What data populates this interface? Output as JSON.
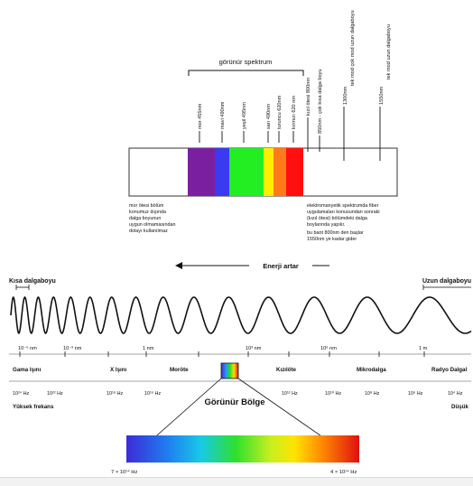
{
  "top": {
    "title": "görünür spektrum",
    "tick_labels": [
      "mor 455nm",
      "mavi 490nm",
      "yeşil 495nm",
      "sarı 490nm",
      "turuncu 620nm",
      "kırmızı 620 nm",
      "kızıl ötesi 800nm",
      "850nm - çok kısa dalga boyu",
      "1300nm",
      "tek mod çok mod uzun dalgaboyu",
      "1550nm",
      "tek mod uzun dalgaboyu"
    ],
    "note_left": [
      "mor ötesi bölüm",
      "konumuz dışında",
      "dalga boyunun",
      "uygun olmamasından",
      "dolayı kullanılmaz"
    ],
    "note_right": [
      "elektromanyetik spektrumda fiber",
      "uygulamaları konusundan sonraki",
      "(kızıl ötesi) bölümdeki dalga",
      "boylarında yapılır.",
      "bu bant 800nm den başlar",
      "1550nm ye kadar gider"
    ],
    "colors": {
      "violet": "#7a1fa0",
      "blue": "#3a3af0",
      "green": "#22ee22",
      "yellow": "#ffee00",
      "orange": "#ff7a1a",
      "red": "#ff1010"
    }
  },
  "middle": {
    "energy_label": "Enerji artar",
    "short_wave": "Kısa dalgaboyu",
    "long_wave": "Uzun dalgaboyu",
    "wavelength_ticks": [
      "10⁻⁵ nm",
      "10⁻³ nm",
      "1 nm",
      "10³ nm",
      "10⁶ nm",
      "1 m"
    ],
    "regions": [
      "Gama Işını",
      "X Işını",
      "Moröte",
      "Kızılöte",
      "Mikrodalga",
      "Radyo Dalgal"
    ],
    "freq_ticks": [
      "10²⁴ Hz",
      "10²² Hz",
      "10¹⁸ Hz",
      "10¹⁶ Hz",
      "10¹² Hz",
      "10¹⁰ Hz",
      "10⁸ Hz",
      "10⁶ Hz",
      "10⁴ Hz"
    ],
    "high_freq": "Yüksek frekans",
    "low_freq": "Düşük"
  },
  "bottom": {
    "title": "Görünür Bölge",
    "left_freq": "7 × 10¹⁴ Hz",
    "right_freq": "4 × 10¹⁴ Hz"
  }
}
